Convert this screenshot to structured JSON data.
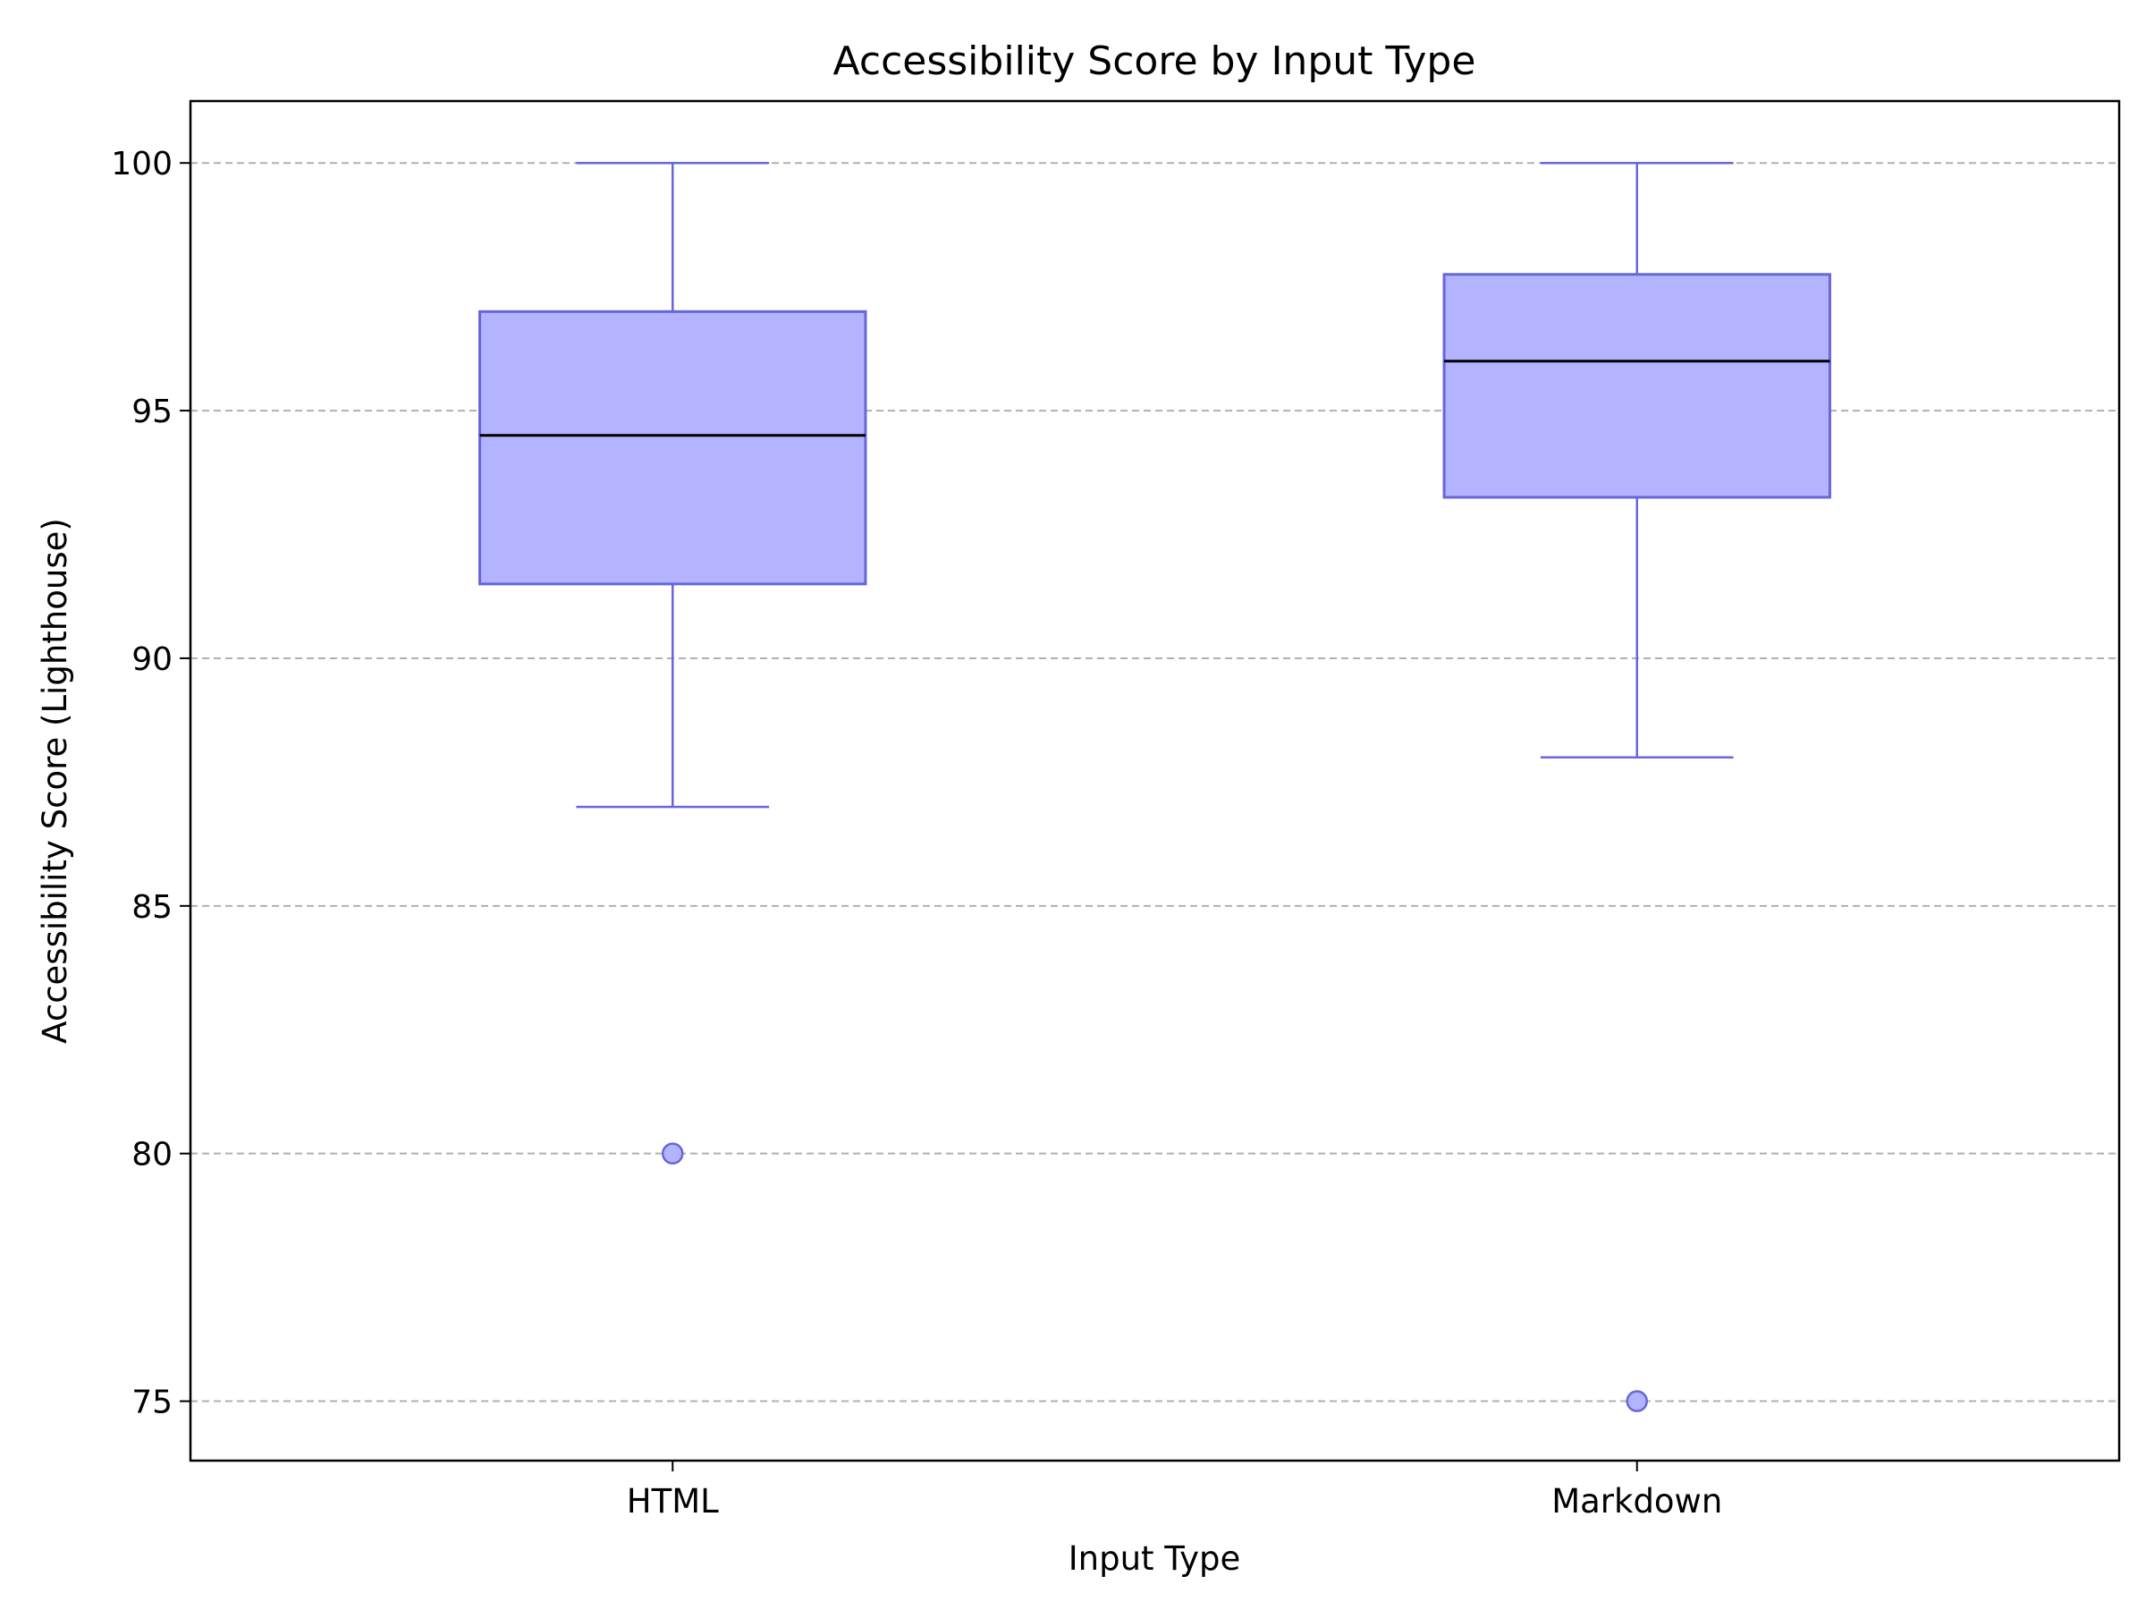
{
  "chart_data": {
    "type": "box",
    "title": "Accessibility Score by Input Type",
    "xlabel": "Input Type",
    "ylabel": "Accessibility Score (Lighthouse)",
    "ylim": [
      73.8,
      101.25
    ],
    "yticks": [
      75,
      80,
      85,
      90,
      95,
      100
    ],
    "grid": "y-dashed",
    "categories": [
      "HTML",
      "Markdown"
    ],
    "boxes": [
      {
        "category": "HTML",
        "whisker_low": 87,
        "q1": 91.5,
        "median": 94.5,
        "q3": 97,
        "whisker_high": 100,
        "outliers": [
          80
        ]
      },
      {
        "category": "Markdown",
        "whisker_low": 88,
        "q1": 93.25,
        "median": 96,
        "q3": 97.75,
        "whisker_high": 100,
        "outliers": [
          75
        ]
      }
    ],
    "colors": {
      "box_fill": "#b3b3ff",
      "box_edge": "#6666dd",
      "median": "#000000",
      "grid": "#b0b0b0"
    }
  }
}
